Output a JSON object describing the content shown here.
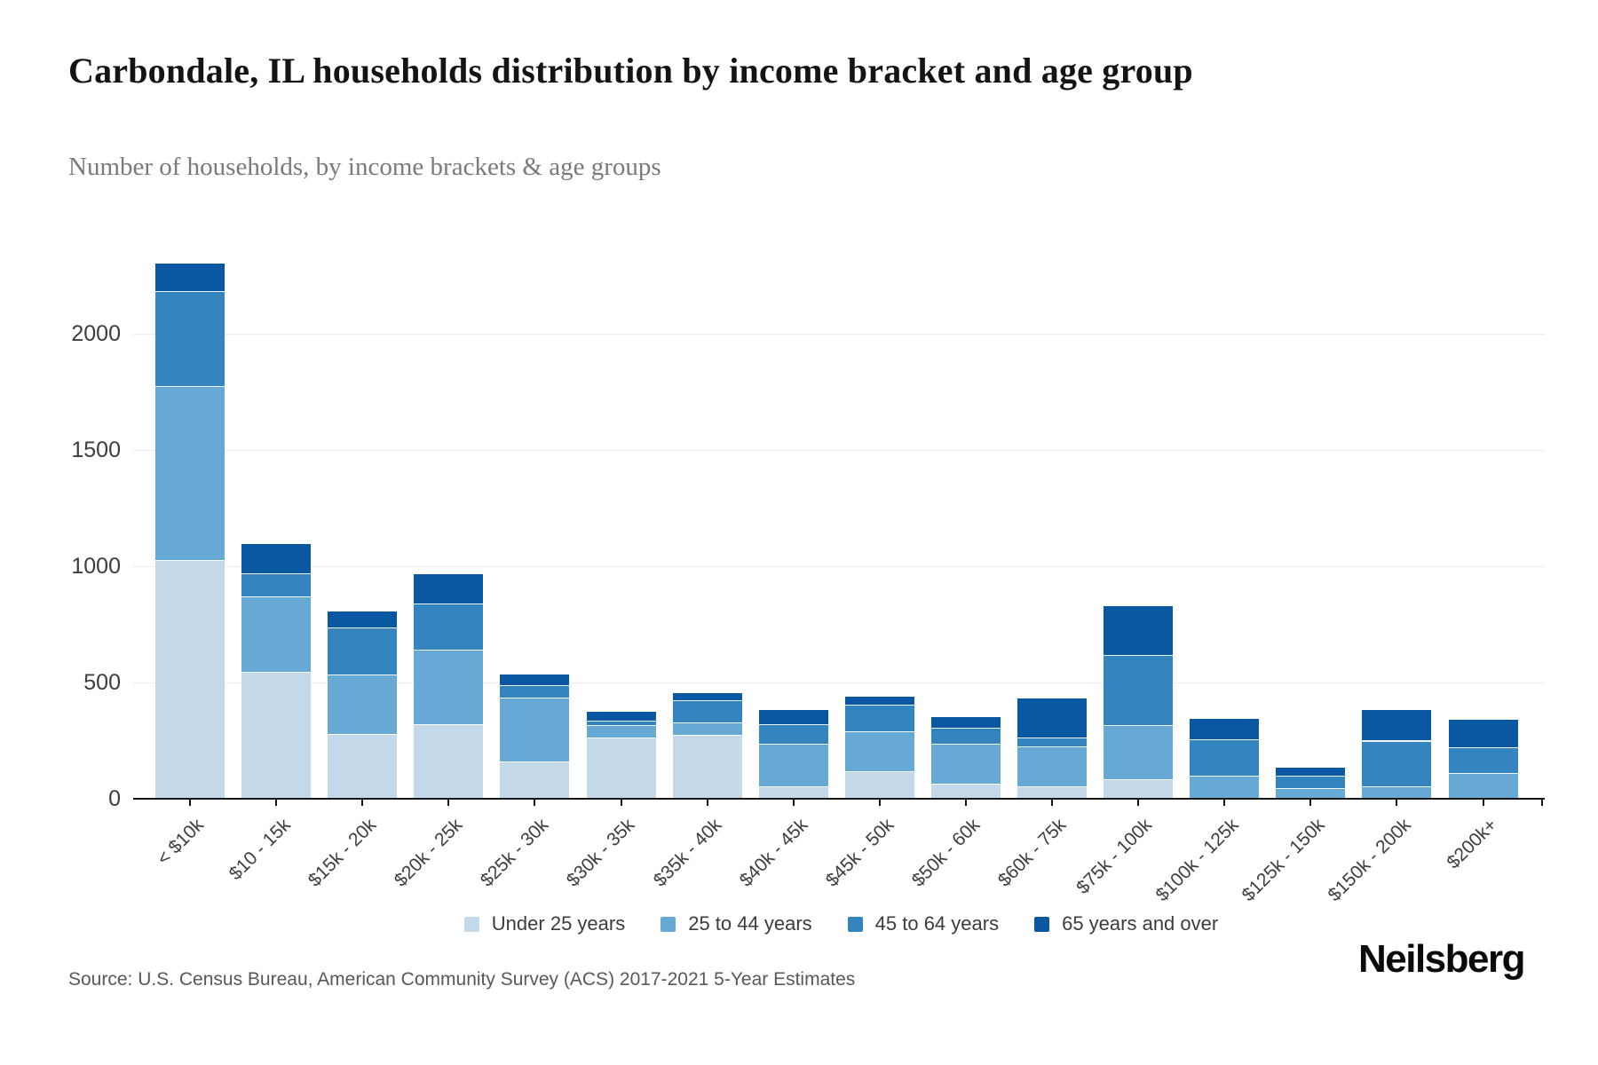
{
  "header": {
    "title": "Carbondale, IL households distribution by income bracket and age group",
    "subtitle": "Number of households, by income brackets & age groups"
  },
  "footer": {
    "source": "Source: U.S. Census Bureau, American Community Survey (ACS) 2017-2021 5-Year Estimates",
    "brand": "Neilsberg"
  },
  "chart_data": {
    "type": "bar",
    "stacked": true,
    "title": "Carbondale, IL households distribution by income bracket and age group",
    "subtitle": "Number of households, by income brackets & age groups",
    "xlabel": "",
    "ylabel": "",
    "ylim": [
      0,
      2440
    ],
    "yticks": [
      0,
      500,
      1000,
      1500,
      2000
    ],
    "grid": true,
    "legend_position": "bottom",
    "categories": [
      "< $10k",
      "$10 - 15k",
      "$15k - 20k",
      "$20k - 25k",
      "$25k - 30k",
      "$30k - 35k",
      "$35k - 40k",
      "$40k - 45k",
      "$45k - 50k",
      "$50k - 60k",
      "$60k - 75k",
      "$75k - 100k",
      "$100k - 125k",
      "$125k - 150k",
      "$150k - 200k",
      "$200k+"
    ],
    "series": [
      {
        "name": "Under 25 years",
        "color": "#c3d9e9",
        "values": [
          1025,
          545,
          280,
          320,
          160,
          265,
          275,
          55,
          120,
          65,
          55,
          85,
          0,
          0,
          0,
          0
        ]
      },
      {
        "name": "25 to 44 years",
        "color": "#66a9d4",
        "values": [
          750,
          325,
          255,
          320,
          275,
          50,
          55,
          180,
          170,
          170,
          170,
          230,
          100,
          45,
          55,
          110
        ]
      },
      {
        "name": "45 to 64 years",
        "color": "#3484c0",
        "values": [
          410,
          100,
          200,
          200,
          55,
          20,
          95,
          85,
          115,
          70,
          40,
          305,
          155,
          55,
          195,
          110
        ]
      },
      {
        "name": "65 years and over",
        "color": "#0b58a2",
        "values": [
          115,
          125,
          70,
          125,
          45,
          40,
          30,
          60,
          35,
          45,
          165,
          210,
          90,
          35,
          130,
          120
        ]
      }
    ]
  }
}
